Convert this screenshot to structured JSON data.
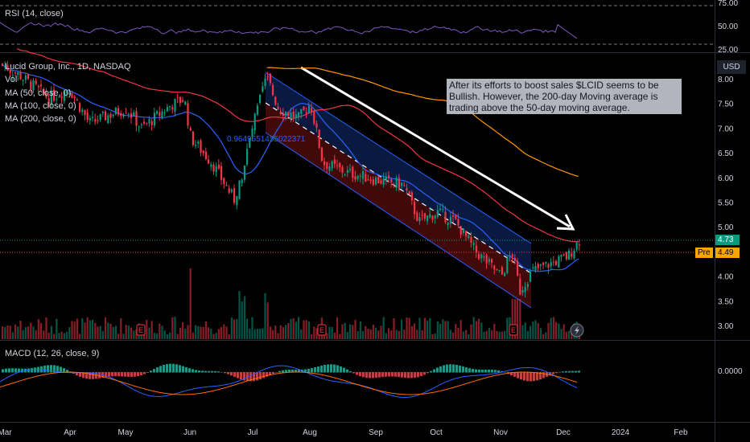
{
  "colors": {
    "up": "#089981",
    "down": "#f23645",
    "rsi": "#7e57c2",
    "ma50": "#2962ff",
    "ma100": "#f23645",
    "ma200": "#ff9800",
    "macd_line": "#2962ff",
    "signal_line": "#ff6d00",
    "channel_blue": "#2962ff",
    "channel_red": "#b71c1c"
  },
  "legend": {
    "rsi": "RSI (14, close)",
    "symbol": "Lucid Group, Inc., 1D, NASDAQ",
    "vol": "Vol",
    "ma50": "MA (50, close, 0)",
    "ma100": "MA (100, close, 0)",
    "ma200": "MA (200, close, 0)",
    "macd": "MACD (12, 26, close, 9)"
  },
  "annotation": {
    "text": "After its efforts to boost sales $LCID seems to be Bullish. However, the 200-day Moving average is trading above the 50-day moving average.",
    "channel_label": "0.9649651455022371"
  },
  "axis": {
    "currency": "USD",
    "last_price": "4.73",
    "pre_label": "Pre",
    "pre_price": "4.49",
    "macd_zero": "0.0000",
    "earnings_marker": "E"
  },
  "chart_data": {
    "type": "candlestick",
    "x_ticks": [
      "Mar",
      "Apr",
      "May",
      "Jun",
      "Jul",
      "Aug",
      "Sep",
      "Oct",
      "Nov",
      "Dec",
      "2024",
      "Feb"
    ],
    "y_ticks": [
      "8.00",
      "7.50",
      "7.00",
      "6.50",
      "6.00",
      "5.50",
      "5.00",
      "4.50",
      "4.00",
      "3.50",
      "3.00"
    ],
    "rsi_ticks": [
      "75.00",
      "50.00",
      "25.00"
    ],
    "price_key_points": [
      {
        "date": "Mar",
        "close": 8.3
      },
      {
        "date": "Apr",
        "close": 7.8
      },
      {
        "date": "May",
        "close": 7.4
      },
      {
        "date": "Jun",
        "close": 6.1
      },
      {
        "date": "late Jun",
        "close": 5.5
      },
      {
        "date": "Jul",
        "close": 8.05
      },
      {
        "date": "Aug",
        "close": 6.8
      },
      {
        "date": "Sep",
        "close": 6.0
      },
      {
        "date": "Oct",
        "close": 5.1
      },
      {
        "date": "Nov",
        "close": 3.65
      },
      {
        "date": "Dec",
        "close": 4.73
      }
    ],
    "last_close": 4.73,
    "premarket": 4.49,
    "ylim": [
      2.8,
      8.3
    ],
    "earnings_markers": [
      "May",
      "Aug",
      "Nov"
    ]
  }
}
